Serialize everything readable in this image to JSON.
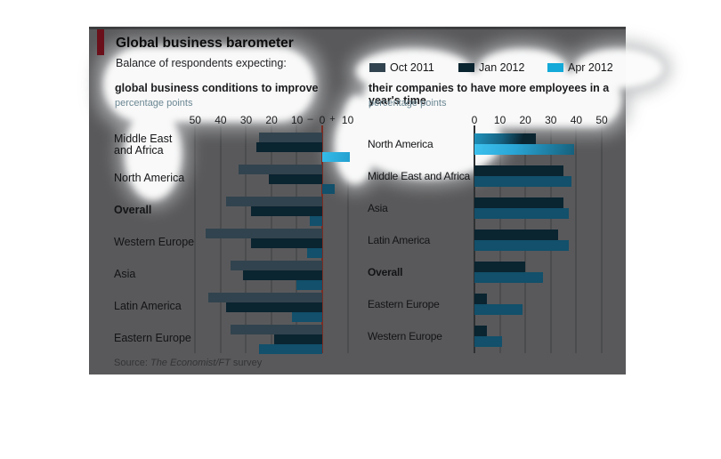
{
  "panel": {
    "title": "Global business barometer",
    "subtitle": "Balance of respondents expecting:",
    "background": "#59595b",
    "accent_bar_color": "#6b101a",
    "source_prefix": "Source: ",
    "source_italic": "The Economist/FT",
    "source_suffix": " survey"
  },
  "legend": {
    "items": [
      {
        "label": "Oct 2011",
        "color": "#31434e"
      },
      {
        "label": "Jan 2012",
        "color": "#0a2430"
      },
      {
        "label": "Apr 2012",
        "color": "#14a9d8"
      }
    ]
  },
  "annotations": {
    "highlight_regions": [
      "white highlight blob over left chart header, axis labels and upper row labels",
      "white highlight blob over right chart header, legend and North America rows"
    ]
  },
  "chart_data": [
    {
      "type": "bar",
      "orientation": "horizontal-diverging",
      "title": "global business conditions to improve",
      "unit_label": "percentage points",
      "axis_ticks": [
        "50",
        "40",
        "30",
        "20",
        "10",
        "–",
        "0",
        "+",
        "10"
      ],
      "xlim": [
        -50,
        12
      ],
      "grid": true,
      "zero_line_color": "#7c2b22",
      "categories": [
        "Middle East and Africa",
        "North America",
        "Overall",
        "Western Europe",
        "Asia",
        "Latin America",
        "Eastern Europe"
      ],
      "bold_categories": [
        "Overall"
      ],
      "series": [
        {
          "name": "Oct 2011",
          "color": "#31434e",
          "values": [
            -25,
            -33,
            -38,
            -46,
            -36,
            -45,
            -36
          ]
        },
        {
          "name": "Jan 2012",
          "color": "#0a2430",
          "values": [
            -26,
            -21,
            -28,
            -28,
            -31,
            -38,
            -19
          ]
        },
        {
          "name": "Apr 2012",
          "color": "#12506b",
          "values": [
            11,
            5,
            -5,
            -6,
            -10,
            -12,
            -25
          ]
        }
      ]
    },
    {
      "type": "bar",
      "orientation": "horizontal",
      "title": "their companies to have more employees in a year's time",
      "unit_label": "percentage points",
      "axis_ticks": [
        "0",
        "10",
        "20",
        "30",
        "40",
        "50"
      ],
      "xlim": [
        0,
        55
      ],
      "grid": true,
      "zero_line_color": "#2f3133",
      "categories": [
        "North America",
        "Middle East and Africa",
        "Asia",
        "Latin America",
        "Overall",
        "Eastern Europe",
        "Western Europe"
      ],
      "bold_categories": [
        "Overall"
      ],
      "series": [
        {
          "name": "Jan 2012",
          "color": "#0a2430",
          "values": [
            24,
            35,
            35,
            33,
            20,
            5,
            5
          ]
        },
        {
          "name": "Apr 2012",
          "color": "#12506b",
          "values": [
            39,
            38,
            37,
            37,
            27,
            19,
            11
          ]
        }
      ]
    }
  ]
}
